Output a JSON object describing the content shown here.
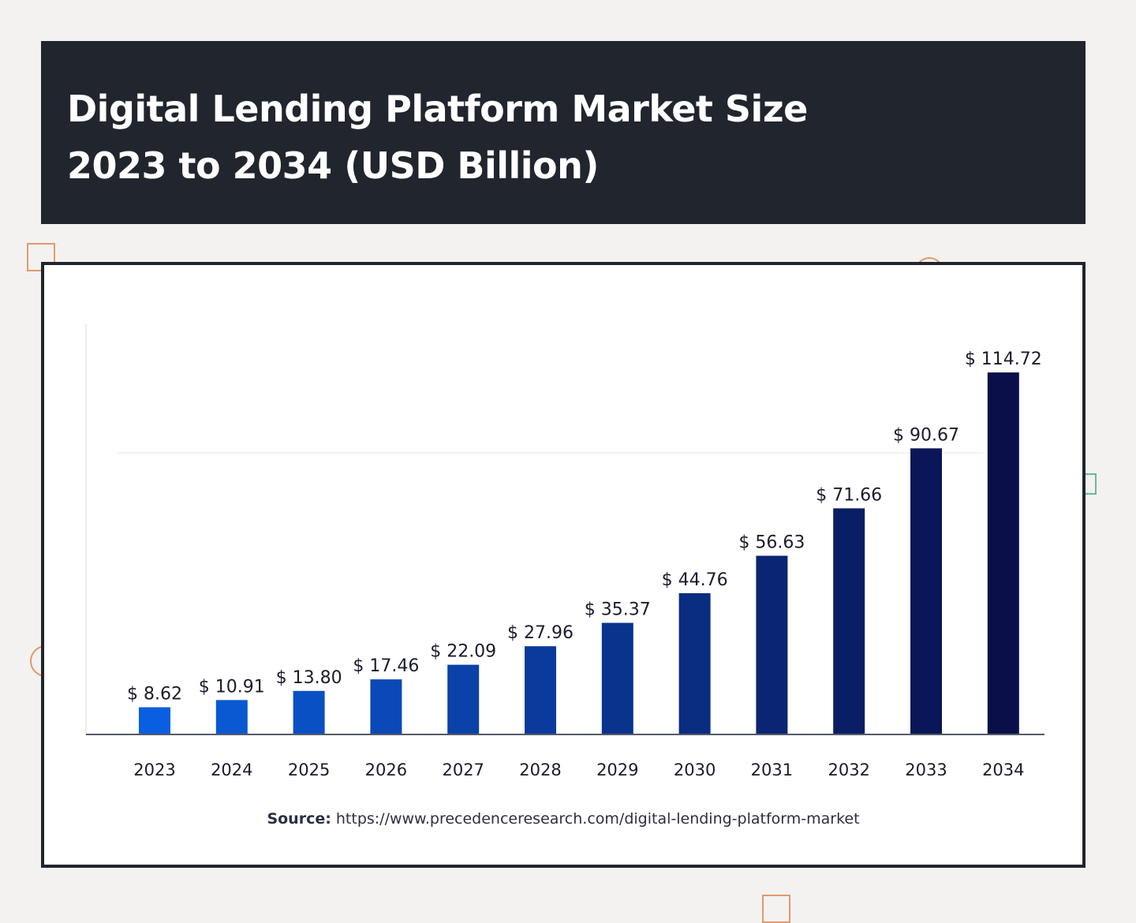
{
  "header": {
    "title_line1": "Digital Lending Platform Market Size",
    "title_line2": "2023 to 2034 (USD Billion)"
  },
  "source": {
    "label": "Source:",
    "url": "https://www.precedenceresearch.com/digital-lending-platform-market"
  },
  "colors": {
    "header_bg": "#21252e",
    "bar_start": "#0a5fe0",
    "bar_end": "#0a0f4a",
    "accent_orange": "#e29a6b",
    "accent_green": "#6fb796"
  },
  "chart_data": {
    "type": "bar",
    "categories": [
      "2023",
      "2024",
      "2025",
      "2026",
      "2027",
      "2028",
      "2029",
      "2030",
      "2031",
      "2032",
      "2033",
      "2034"
    ],
    "values": [
      8.62,
      10.91,
      13.8,
      17.46,
      22.09,
      27.96,
      35.37,
      44.76,
      56.63,
      71.66,
      90.67,
      114.72
    ],
    "data_labels": [
      "$ 8.62",
      "$ 10.91",
      "$ 13.80",
      "$ 17.46",
      "$ 22.09",
      "$ 27.96",
      "$ 35.37",
      "$ 44.76",
      "$ 56.63",
      "$ 71.66",
      "$ 90.67",
      "$ 114.72"
    ],
    "title": "Digital Lending Platform Market Size 2023 to 2034 (USD Billion)",
    "xlabel": "",
    "ylabel": "",
    "ylim": [
      0,
      120
    ],
    "grid": true,
    "legend": "none"
  }
}
